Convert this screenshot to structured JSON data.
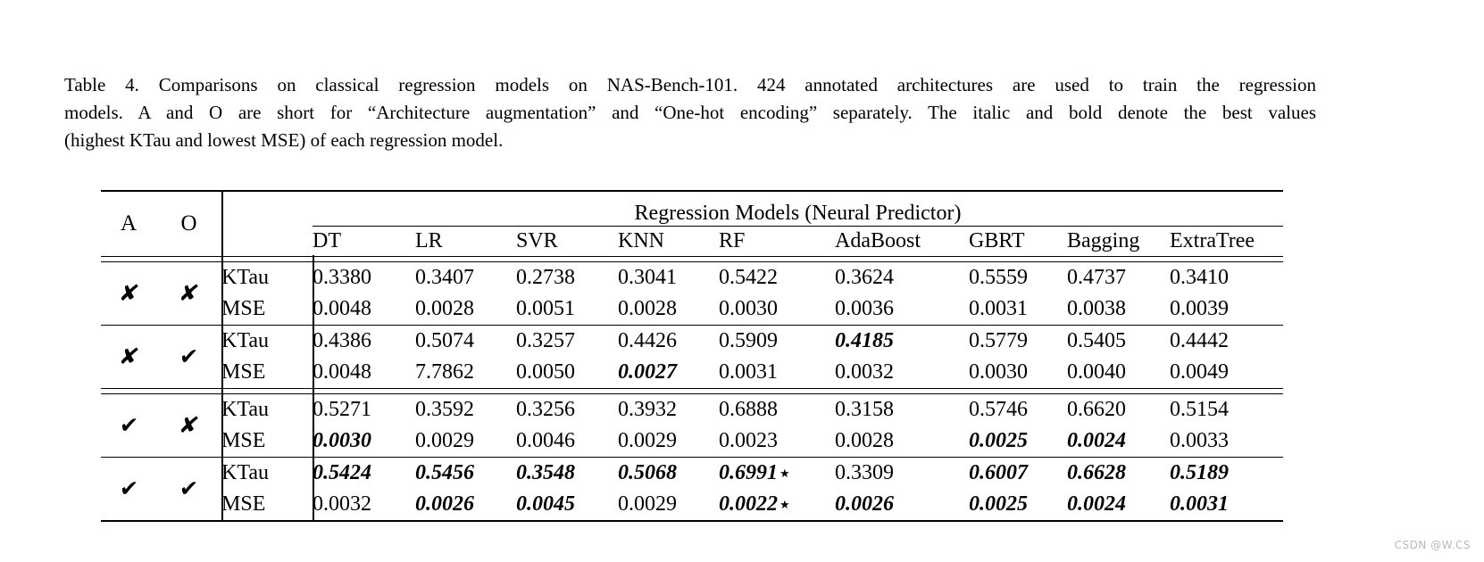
{
  "caption": {
    "lines": [
      "Table 4. Comparisons on classical regression models on NAS-Bench-101.  424 annotated architectures are used to train the regression",
      "models. A and O are short for “Architecture augmentation” and “One-hot encoding” separately. The italic and bold denote the best values",
      "(highest KTau and lowest MSE) of each regression model."
    ]
  },
  "table": {
    "header": {
      "a": "A",
      "o": "O",
      "group": "Regression Models (Neural Predictor)",
      "models": [
        "DT",
        "LR",
        "SVR",
        "KNN",
        "RF",
        "AdaBoost",
        "GBRT",
        "Bagging",
        "ExtraTree"
      ]
    },
    "mark_glyphs": {
      "cross": "✘",
      "check": "✔",
      "star": "★"
    },
    "groups": [
      {
        "a": "cross",
        "o": "cross",
        "rule_before": "double",
        "rows": [
          {
            "label": "KTau",
            "values": [
              {
                "v": "0.3380"
              },
              {
                "v": "0.3407"
              },
              {
                "v": "0.2738"
              },
              {
                "v": "0.3041"
              },
              {
                "v": "0.5422"
              },
              {
                "v": "0.3624"
              },
              {
                "v": "0.5559"
              },
              {
                "v": "0.4737"
              },
              {
                "v": "0.3410"
              }
            ]
          },
          {
            "label": "MSE",
            "values": [
              {
                "v": "0.0048"
              },
              {
                "v": "0.0028"
              },
              {
                "v": "0.0051"
              },
              {
                "v": "0.0028"
              },
              {
                "v": "0.0030"
              },
              {
                "v": "0.0036"
              },
              {
                "v": "0.0031"
              },
              {
                "v": "0.0038"
              },
              {
                "v": "0.0039"
              }
            ]
          }
        ]
      },
      {
        "a": "cross",
        "o": "check",
        "rule_before": "single",
        "rows": [
          {
            "label": "KTau",
            "values": [
              {
                "v": "0.4386"
              },
              {
                "v": "0.5074"
              },
              {
                "v": "0.3257"
              },
              {
                "v": "0.4426"
              },
              {
                "v": "0.5909"
              },
              {
                "v": "0.4185",
                "em": true
              },
              {
                "v": "0.5779"
              },
              {
                "v": "0.5405"
              },
              {
                "v": "0.4442"
              }
            ]
          },
          {
            "label": "MSE",
            "values": [
              {
                "v": "0.0048"
              },
              {
                "v": "7.7862"
              },
              {
                "v": "0.0050"
              },
              {
                "v": "0.0027",
                "em": true
              },
              {
                "v": "0.0031"
              },
              {
                "v": "0.0032"
              },
              {
                "v": "0.0030"
              },
              {
                "v": "0.0040"
              },
              {
                "v": "0.0049"
              }
            ]
          }
        ]
      },
      {
        "a": "check",
        "o": "cross",
        "rule_before": "double",
        "rows": [
          {
            "label": "KTau",
            "values": [
              {
                "v": "0.5271"
              },
              {
                "v": "0.3592"
              },
              {
                "v": "0.3256"
              },
              {
                "v": "0.3932"
              },
              {
                "v": "0.6888"
              },
              {
                "v": "0.3158"
              },
              {
                "v": "0.5746"
              },
              {
                "v": "0.6620"
              },
              {
                "v": "0.5154"
              }
            ]
          },
          {
            "label": "MSE",
            "values": [
              {
                "v": "0.0030",
                "em": true
              },
              {
                "v": "0.0029"
              },
              {
                "v": "0.0046"
              },
              {
                "v": "0.0029"
              },
              {
                "v": "0.0023"
              },
              {
                "v": "0.0028"
              },
              {
                "v": "0.0025",
                "em": true
              },
              {
                "v": "0.0024",
                "em": true
              },
              {
                "v": "0.0033"
              }
            ]
          }
        ]
      },
      {
        "a": "check",
        "o": "check",
        "rule_before": "single",
        "rows": [
          {
            "label": "KTau",
            "values": [
              {
                "v": "0.5424",
                "em": true
              },
              {
                "v": "0.5456",
                "em": true
              },
              {
                "v": "0.3548",
                "em": true
              },
              {
                "v": "0.5068",
                "em": true
              },
              {
                "v": "0.6991",
                "em": true,
                "star": true
              },
              {
                "v": "0.3309"
              },
              {
                "v": "0.6007",
                "em": true
              },
              {
                "v": "0.6628",
                "em": true
              },
              {
                "v": "0.5189",
                "em": true
              }
            ]
          },
          {
            "label": "MSE",
            "values": [
              {
                "v": "0.0032"
              },
              {
                "v": "0.0026",
                "em": true
              },
              {
                "v": "0.0045",
                "em": true
              },
              {
                "v": "0.0029"
              },
              {
                "v": "0.0022",
                "em": true,
                "star": true
              },
              {
                "v": "0.0026",
                "em": true
              },
              {
                "v": "0.0025",
                "em": true
              },
              {
                "v": "0.0024",
                "em": true
              },
              {
                "v": "0.0031",
                "em": true
              }
            ]
          }
        ]
      }
    ]
  },
  "watermark": "CSDN @W.CS"
}
